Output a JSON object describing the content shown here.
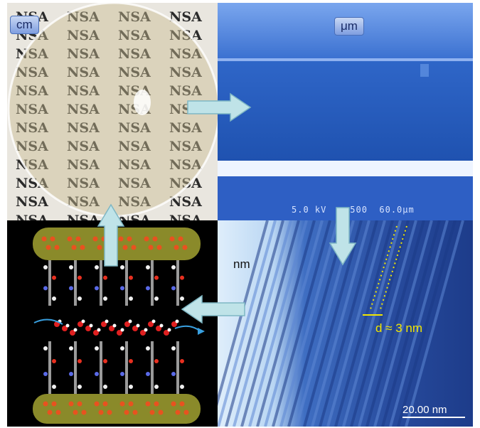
{
  "panels": {
    "cm": {
      "scale_label": "cm",
      "print_word": "NSA"
    },
    "um": {
      "scale_label": "μm",
      "sem_readout": "5.0 kV   ×500  60.0μm"
    },
    "nm": {
      "scale_label": "nm",
      "spacing_label": "d ≈ 3 nm",
      "scale_bar": "20.00 nm"
    },
    "molecular": {}
  },
  "colors": {
    "sem_blue": "#1f55b8",
    "tem_blue": "#2b4a9a",
    "arrow_fill": "#bfe3e8",
    "annotation_yellow": "#f2e600",
    "backbone_olive": "#8a8a2a"
  }
}
